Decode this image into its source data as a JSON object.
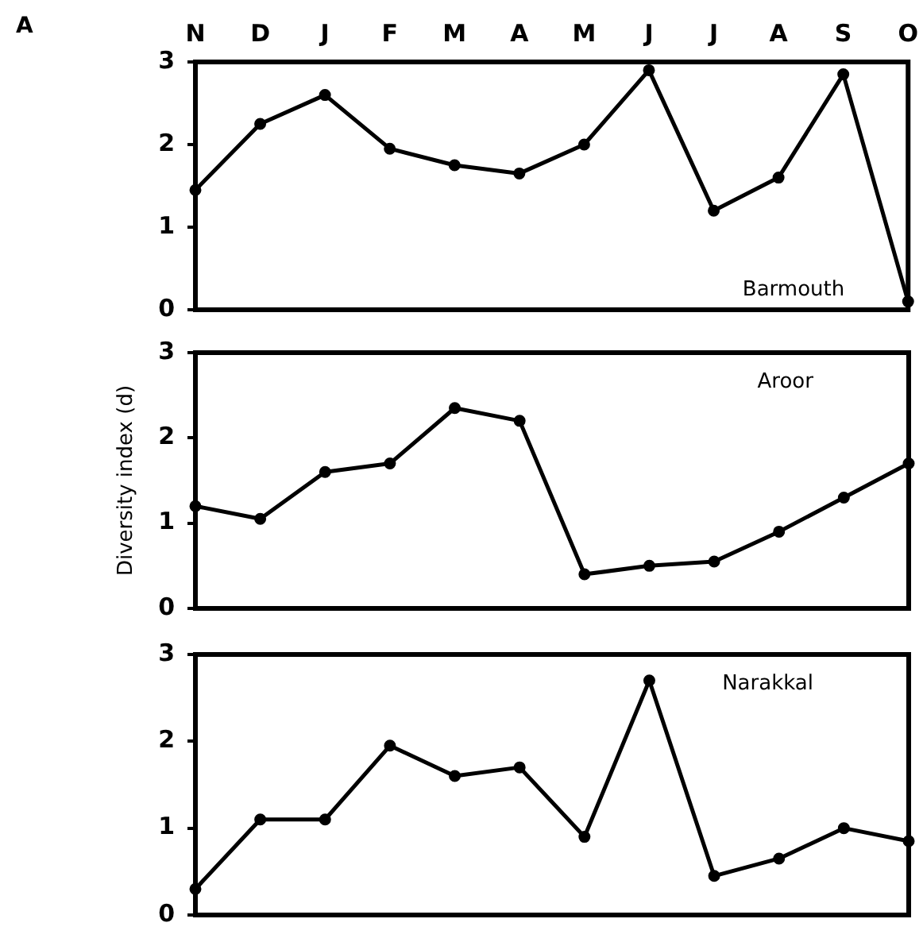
{
  "chart_data": [
    {
      "type": "line",
      "title": "A",
      "categories": [
        "N",
        "D",
        "J",
        "F",
        "M",
        "A",
        "M",
        "J",
        "J",
        "A",
        "S",
        "O"
      ],
      "series": [
        {
          "name": "Barmouth",
          "color": "#000000",
          "values": [
            1.45,
            2.25,
            2.6,
            1.95,
            1.75,
            1.65,
            2.0,
            2.9,
            1.2,
            1.6,
            2.85,
            0.1
          ]
        }
      ],
      "ylim": [
        0,
        3
      ],
      "yticks": [
        0,
        1,
        2,
        3
      ],
      "marker": "circle",
      "line_style": "solid",
      "grid": false,
      "legend": false
    },
    {
      "type": "line",
      "categories": [
        null,
        null,
        null,
        null,
        null,
        null,
        null,
        null,
        null,
        null,
        null,
        null
      ],
      "ylabel": "Diversity index (d)",
      "series": [
        {
          "name": "Aroor",
          "color": "#000000",
          "values": [
            1.2,
            1.05,
            1.6,
            1.7,
            2.35,
            2.2,
            0.4,
            0.5,
            0.55,
            0.9,
            1.3,
            1.7
          ]
        }
      ],
      "ylim": [
        0,
        3
      ],
      "yticks": [
        0,
        1,
        2,
        3
      ],
      "tick_labels": "y",
      "marker": "circle",
      "line_style": "solid",
      "grid": false,
      "legend": false
    },
    {
      "type": "line",
      "categories": [
        null,
        null,
        null,
        null,
        null,
        null,
        null,
        null,
        null,
        null,
        null,
        null
      ],
      "series": [
        {
          "name": "Narakkal",
          "color": "#000000",
          "values": [
            0.3,
            1.1,
            1.1,
            1.95,
            1.6,
            1.7,
            0.9,
            2.7,
            0.45,
            0.65,
            1.0,
            0.85
          ]
        }
      ],
      "ylim": [
        0,
        3
      ],
      "yticks": [
        0,
        1,
        2,
        3
      ],
      "tick_labels": "y",
      "marker": "circle",
      "line_style": "solid",
      "grid": false,
      "legend": false
    }
  ]
}
